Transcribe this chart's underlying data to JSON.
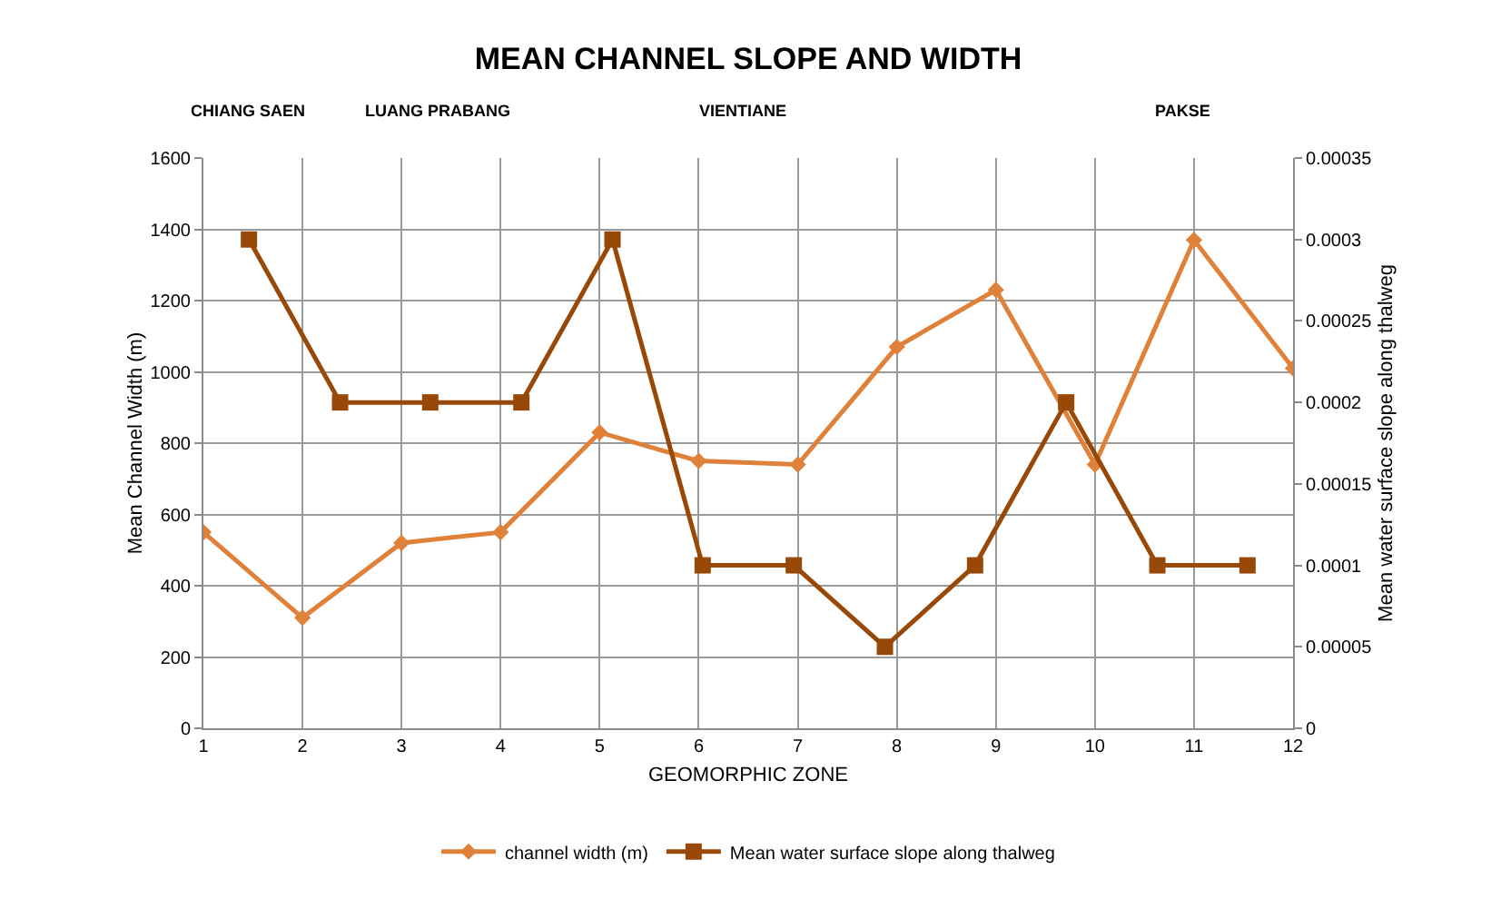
{
  "chart_data": {
    "type": "line",
    "title": "MEAN CHANNEL SLOPE AND WIDTH",
    "xlabel": "GEOMORPHIC ZONE",
    "ylabel": "Mean Channel Width (m)",
    "y2label": "Mean water surface slope along thalweg",
    "xlim": [
      1,
      12
    ],
    "xticks": [
      1,
      2,
      3,
      4,
      5,
      6,
      7,
      8,
      9,
      10,
      11,
      12
    ],
    "ylim": [
      0,
      1600
    ],
    "yticks": [
      0,
      200,
      400,
      600,
      800,
      1000,
      1200,
      1400,
      1600
    ],
    "y2lim": [
      0,
      0.00035
    ],
    "y2ticks": [
      0,
      {
        "value": 5e-05,
        "label": "0.00005"
      },
      0.0001,
      0.00015,
      0.0002,
      0.00025,
      0.0003,
      0.00035
    ],
    "grid": true,
    "legend": "bottom",
    "annotations": [
      "CHIANG SAEN",
      "LUANG PRABANG",
      "VIENTIANE",
      "PAKSE"
    ],
    "series": [
      {
        "name": "channel width (m)",
        "color": "#e0813a",
        "marker": "diamond",
        "x": [
          1,
          2,
          3,
          4,
          5,
          6,
          7,
          8,
          9,
          10,
          11,
          12
        ],
        "values": [
          550,
          310,
          520,
          550,
          830,
          750,
          740,
          1070,
          1230,
          740,
          1370,
          1010
        ]
      },
      {
        "name": "Mean water surface slope along thalweg",
        "color": "#984807",
        "marker": "square",
        "axis": "y2",
        "x": [
          1.46,
          2.38,
          3.29,
          4.21,
          5.13,
          6.04,
          6.96,
          7.88,
          8.79,
          9.71,
          10.63,
          11.54
        ],
        "values": [
          0.0003,
          0.0002,
          0.0002,
          0.0002,
          0.0003,
          0.0001,
          0.0001,
          5e-05,
          0.0001,
          0.0002,
          0.0001,
          0.0001
        ]
      }
    ]
  }
}
